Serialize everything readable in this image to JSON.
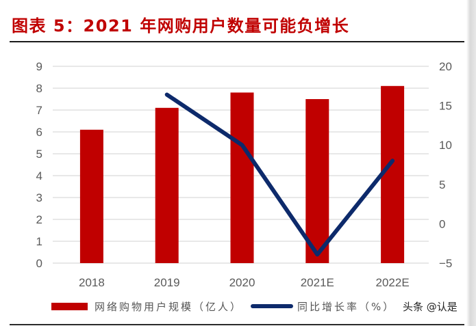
{
  "title": "图表 5：2021 年网购用户数量可能负增长",
  "watermark": "头条 @认是",
  "colors": {
    "bar": "#c00000",
    "line": "#0d2a6b",
    "title": "#c00000",
    "grid": "#d9d9d9",
    "axis_text": "#595959"
  },
  "legend": {
    "bar_label": "网络购物用户规模（亿人）",
    "line_label": "同比增长率（%）"
  },
  "chart_data": {
    "type": "bar+line",
    "title": "2021 年网购用户数量可能负增长",
    "categories": [
      "2018",
      "2019",
      "2020",
      "2021E",
      "2022E"
    ],
    "series": [
      {
        "name": "网络购物用户规模（亿人）",
        "type": "bar",
        "axis": "left",
        "values": [
          6.1,
          7.1,
          7.8,
          7.5,
          8.1
        ]
      },
      {
        "name": "同比增长率（%）",
        "type": "line",
        "axis": "right",
        "values": [
          null,
          16.4,
          10.0,
          -3.9,
          8.0
        ]
      }
    ],
    "left_axis": {
      "ylim": [
        0,
        9
      ],
      "ticks": [
        "0",
        "1",
        "2",
        "3",
        "4",
        "5",
        "6",
        "7",
        "8",
        "9"
      ]
    },
    "right_axis": {
      "ylim": [
        -5,
        20
      ],
      "ticks": [
        "-5",
        "0",
        "5",
        "10",
        "15",
        "20"
      ]
    },
    "grid": true,
    "legend_position": "bottom"
  }
}
